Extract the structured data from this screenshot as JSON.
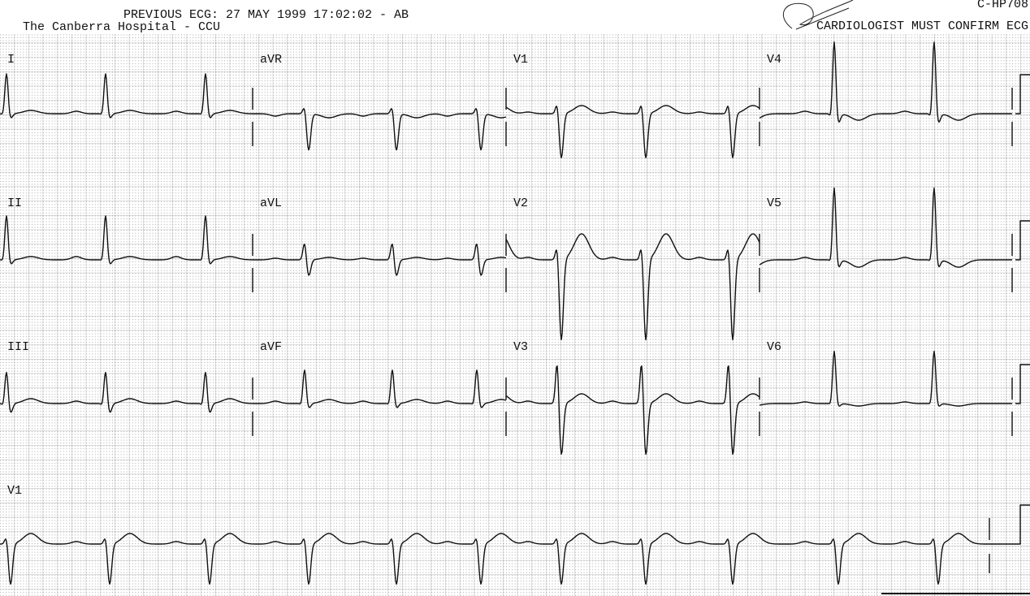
{
  "header": {
    "previous_ecg": "PREVIOUS ECG: 27 MAY 1999 17:02:02 - AB",
    "hospital": "The Canberra Hospital - CCU",
    "code": "C-HP708",
    "notice": "CARDIOLOGIST MUST CONFIRM ECG"
  },
  "leads": [
    "I",
    "aVR",
    "V1",
    "V4",
    "II",
    "aVL",
    "V2",
    "V5",
    "III",
    "aVF",
    "V3",
    "V6"
  ],
  "rhythm_lead": "V1"
}
